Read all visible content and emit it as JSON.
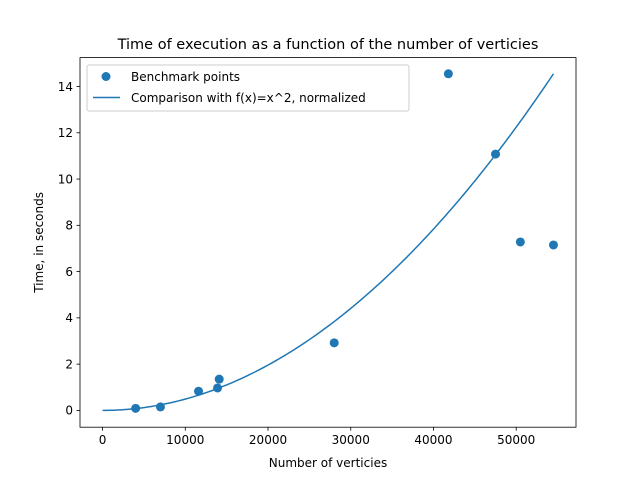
{
  "chart_data": {
    "type": "scatter",
    "title": "Time of execution as a function of the number of verticies",
    "xlabel": "Number of verticies",
    "ylabel": "Time, in seconds",
    "xlim": [
      -2725,
      57225
    ],
    "ylim": [
      -0.726,
      15.25
    ],
    "x_ticks": [
      0,
      10000,
      20000,
      30000,
      40000,
      50000
    ],
    "y_ticks": [
      0,
      2,
      4,
      6,
      8,
      10,
      12,
      14
    ],
    "legend_position": "top-left",
    "grid": false,
    "series": [
      {
        "name": "Benchmark points",
        "kind": "scatter",
        "color": "#1f77b4",
        "points": [
          [
            4000,
            0.09
          ],
          [
            7000,
            0.15
          ],
          [
            11600,
            0.83
          ],
          [
            13900,
            0.97
          ],
          [
            14100,
            1.35
          ],
          [
            28000,
            2.92
          ],
          [
            41800,
            14.55
          ],
          [
            47500,
            11.08
          ],
          [
            50500,
            7.28
          ],
          [
            54500,
            7.15
          ]
        ]
      },
      {
        "name": "Comparison with f(x)=x^2, normalized",
        "kind": "line",
        "color": "#1f77b4",
        "function": "quadratic",
        "x_range": [
          0,
          54500
        ],
        "y_at_end": 14.55
      }
    ]
  }
}
